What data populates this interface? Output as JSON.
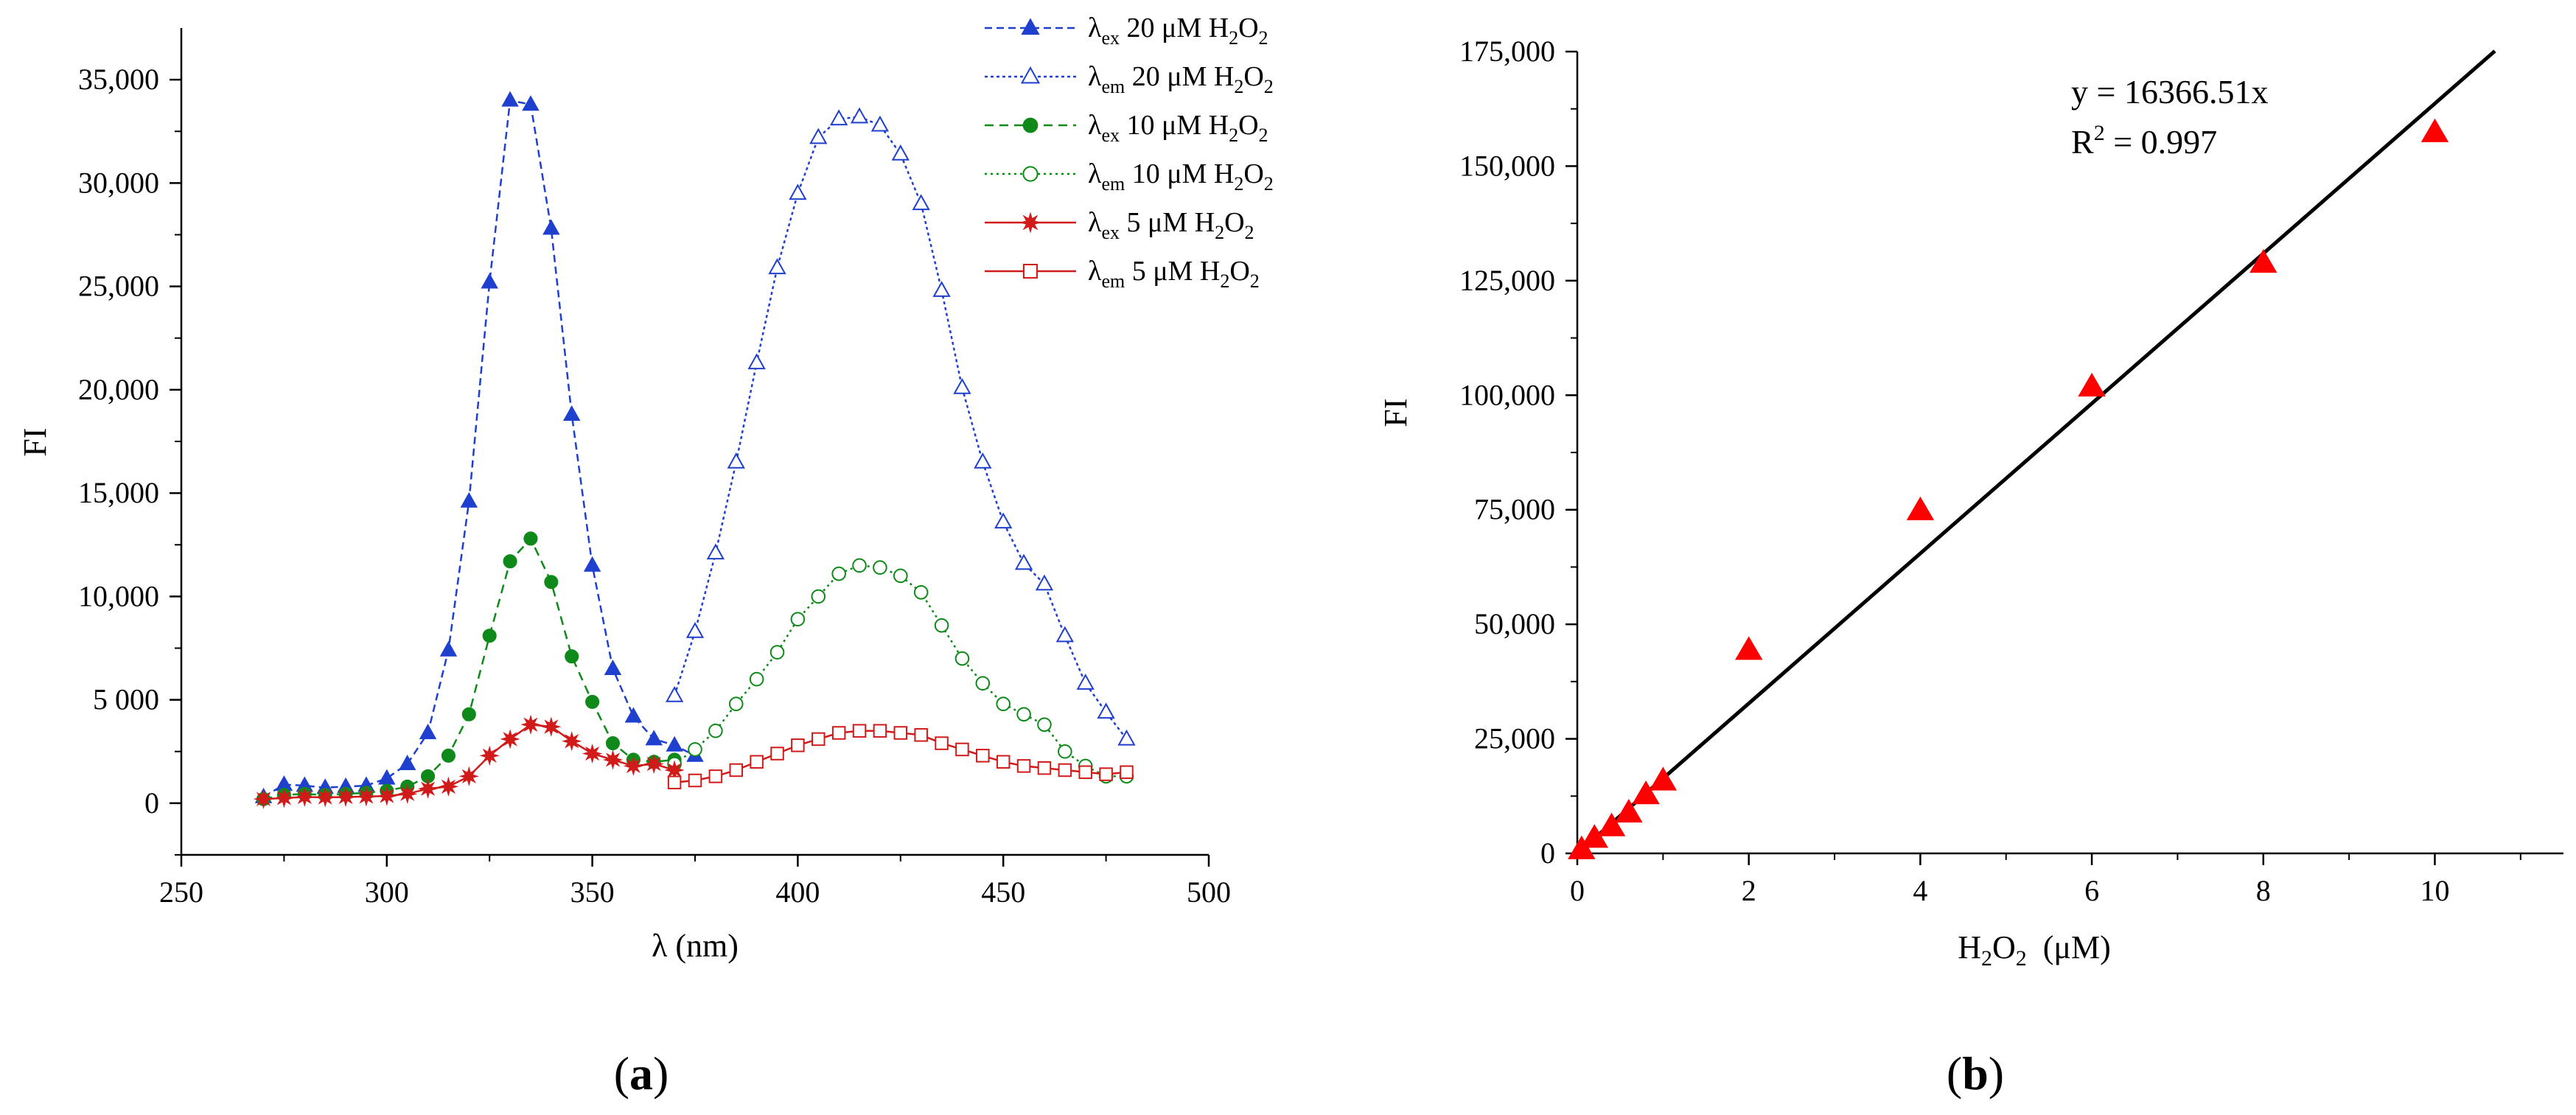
{
  "figure": {
    "panel_a_label": "(a)",
    "panel_b_label": "(b)"
  },
  "chart_data": [
    {
      "type": "line",
      "panel": "a",
      "title": "",
      "xlabel": "λ (nm)",
      "ylabel": "FI",
      "xlim": [
        250,
        500
      ],
      "ylim": [
        -2500,
        37500
      ],
      "x_ticks": [
        250,
        300,
        350,
        400,
        450,
        500
      ],
      "x_tick_labels": [
        "250",
        "300",
        "350",
        "400",
        "450",
        "500"
      ],
      "y_ticks": [
        0,
        5000,
        10000,
        15000,
        20000,
        25000,
        30000,
        35000
      ],
      "y_tick_labels": [
        "0",
        "5 000",
        "10,000",
        "15,000",
        "20,000",
        "25,000",
        "30,000",
        "35,000"
      ],
      "legend_position": "top-right",
      "series": [
        {
          "name": "λex 20 μM H2O2",
          "legend": {
            "lambda": "λ",
            "sub": "ex",
            "text": " 20 μM H",
            "sub2": "2",
            "text2": "O",
            "sub3": "2"
          },
          "color": "#1f3fcf",
          "marker": "triangle-filled",
          "dash": "10,6",
          "x": [
            270,
            275,
            280,
            285,
            290,
            295,
            300,
            305,
            310,
            315,
            320,
            325,
            330,
            335,
            340,
            345,
            350,
            355,
            360,
            365,
            370,
            375
          ],
          "y": [
            300,
            900,
            850,
            750,
            800,
            850,
            1200,
            1900,
            3400,
            7400,
            14600,
            25200,
            34000,
            33800,
            27800,
            18800,
            11500,
            6500,
            4200,
            3100,
            2800,
            2300
          ]
        },
        {
          "name": "λem 20 μM H2O2",
          "legend": {
            "lambda": "λ",
            "sub": "em",
            "text": " 20 μM H",
            "sub2": "2",
            "text2": "O",
            "sub3": "2"
          },
          "color": "#1f3fcf",
          "marker": "triangle-open",
          "dash": "4,4",
          "x": [
            370,
            375,
            380,
            385,
            390,
            395,
            400,
            405,
            410,
            415,
            420,
            425,
            430,
            435,
            440,
            445,
            450,
            455,
            460,
            465,
            470,
            475,
            480
          ],
          "y": [
            5200,
            8300,
            12100,
            16500,
            21300,
            25900,
            29500,
            32200,
            33100,
            33200,
            32800,
            31400,
            29000,
            24800,
            20100,
            16500,
            13600,
            11600,
            10600,
            8100,
            5800,
            4400,
            3100
          ]
        },
        {
          "name": "λex 10 μM H2O2",
          "legend": {
            "lambda": "λ",
            "sub": "ex",
            "text": " 10 μM H",
            "sub2": "2",
            "text2": "O",
            "sub3": "2"
          },
          "color": "#0f8a1a",
          "marker": "circle-filled",
          "dash": "12,8",
          "x": [
            270,
            275,
            280,
            285,
            290,
            295,
            300,
            305,
            310,
            315,
            320,
            325,
            330,
            335,
            340,
            345,
            350,
            355,
            360,
            365,
            370
          ],
          "y": [
            200,
            400,
            450,
            400,
            450,
            500,
            600,
            800,
            1300,
            2300,
            4300,
            8100,
            11700,
            12800,
            10700,
            7100,
            4900,
            2900,
            2100,
            2000,
            2100
          ]
        },
        {
          "name": "λem 10 μM H2O2",
          "legend": {
            "lambda": "λ",
            "sub": "em",
            "text": " 10 μM H",
            "sub2": "2",
            "text2": "O",
            "sub3": "2"
          },
          "color": "#0f8a1a",
          "marker": "circle-open",
          "dash": "3,5",
          "x": [
            370,
            375,
            380,
            385,
            390,
            395,
            400,
            405,
            410,
            415,
            420,
            425,
            430,
            435,
            440,
            445,
            450,
            455,
            460,
            465,
            470,
            475,
            480
          ],
          "y": [
            1900,
            2600,
            3500,
            4800,
            6000,
            7300,
            8900,
            10000,
            11100,
            11500,
            11400,
            11000,
            10200,
            8600,
            7000,
            5800,
            4800,
            4300,
            3800,
            2500,
            1800,
            1300,
            1300
          ]
        },
        {
          "name": "λex 5 μM H2O2",
          "legend": {
            "lambda": "λ",
            "sub": "ex",
            "text": " 5 μM H",
            "sub2": "2",
            "text2": "O",
            "sub3": "2"
          },
          "color": "#d11a1a",
          "marker": "star-filled",
          "dash": "",
          "x": [
            270,
            275,
            280,
            285,
            290,
            295,
            300,
            305,
            310,
            315,
            320,
            325,
            330,
            335,
            340,
            345,
            350,
            355,
            360,
            365,
            370
          ],
          "y": [
            200,
            250,
            300,
            280,
            300,
            320,
            350,
            450,
            700,
            800,
            1300,
            2300,
            3100,
            3800,
            3700,
            3000,
            2400,
            2100,
            1800,
            1900,
            1600
          ]
        },
        {
          "name": "λem 5 μM H2O2",
          "legend": {
            "lambda": "λ",
            "sub": "em",
            "text": " 5 μM H",
            "sub2": "2",
            "text2": "O",
            "sub3": "2"
          },
          "color": "#d11a1a",
          "marker": "square-open",
          "dash": "",
          "x": [
            370,
            375,
            380,
            385,
            390,
            395,
            400,
            405,
            410,
            415,
            420,
            425,
            430,
            435,
            440,
            445,
            450,
            455,
            460,
            465,
            470,
            475,
            480
          ],
          "y": [
            1000,
            1100,
            1300,
            1600,
            2000,
            2400,
            2800,
            3100,
            3400,
            3500,
            3500,
            3400,
            3300,
            2900,
            2600,
            2300,
            2000,
            1800,
            1700,
            1600,
            1500,
            1400,
            1500
          ]
        }
      ]
    },
    {
      "type": "scatter",
      "panel": "b",
      "title": "",
      "xlabel": "H2O2 (μM)",
      "xlabel_parts": {
        "text": "H",
        "sub": "2",
        "text2": "O",
        "sub2": "2",
        "text3": "  (μM)"
      },
      "ylabel": "FI",
      "xlim": [
        0,
        11.5
      ],
      "ylim": [
        0,
        175000
      ],
      "x_ticks": [
        0,
        2,
        4,
        6,
        8,
        10
      ],
      "x_tick_labels": [
        "0",
        "2",
        "4",
        "6",
        "8",
        "10"
      ],
      "y_ticks": [
        0,
        25000,
        50000,
        75000,
        100000,
        125000,
        150000,
        175000
      ],
      "y_tick_labels": [
        "0",
        "25,000",
        "50,000",
        "75,000",
        "100,000",
        "125,000",
        "150,000",
        "175,000"
      ],
      "fit": {
        "equation": "y = 16366.51x",
        "r2_text": "= 0.997",
        "r2_prefix": "R",
        "r2_sup": "2",
        "slope": 16366.51,
        "x_range": [
          0,
          10.7
        ],
        "color": "#000000"
      },
      "points": {
        "color": "#ff0000",
        "x": [
          0.05,
          0.2,
          0.4,
          0.6,
          0.8,
          1.0,
          2,
          4,
          6,
          8,
          10
        ],
        "y": [
          1000,
          3500,
          6000,
          9000,
          13000,
          16000,
          44500,
          75000,
          102000,
          129000,
          157500
        ]
      }
    }
  ]
}
